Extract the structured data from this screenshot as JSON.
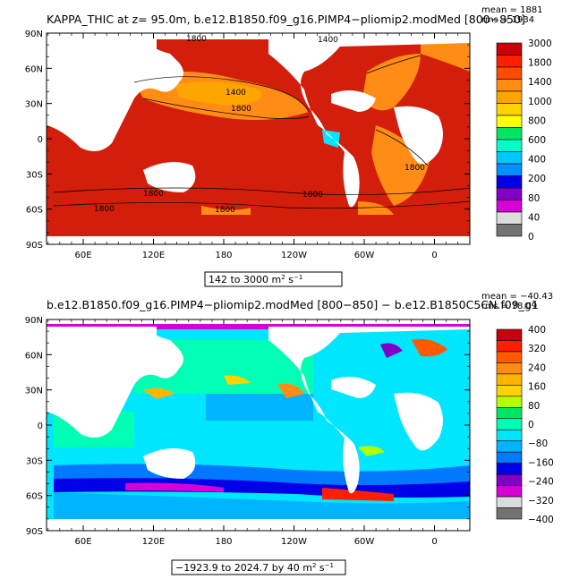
{
  "panels": [
    {
      "title": "KAPPA_THIC at z=   95.0m, b.e12.B1850.f09_g16.PIMP4−pliomip2.modMed [800−850]",
      "stats_mean": "mean = 1881",
      "stats_rms": "rms = 1934",
      "range_label": "142 to 3000 m",
      "range_unit_sup": "2",
      "range_unit_tail": " s",
      "range_unit_sup2": "−1",
      "lat_labels": [
        "90N",
        "60N",
        "30N",
        "0",
        "30S",
        "60S",
        "90S"
      ],
      "lon_labels": [
        "60E",
        "120E",
        "180",
        "120W",
        "60W",
        "0"
      ],
      "contour_labels": [
        "1400",
        "1800",
        "1400",
        "1800",
        "1800",
        "1800",
        "1800",
        "1800",
        "1800",
        "1800",
        "1800"
      ],
      "colorbar_labels": [
        "3000",
        "1800",
        "1400",
        "1000",
        "800",
        "600",
        "400",
        "200",
        "80",
        "40",
        "0"
      ],
      "colorbar_colors": [
        "#c8000a",
        "#ff1e00",
        "#ff4a00",
        "#ff8c14",
        "#ffa500",
        "#ffd200",
        "#ffff00",
        "#00e664",
        "#00ffc8",
        "#00c8ff",
        "#0090ff",
        "#0000e6",
        "#8000c8",
        "#d700d7",
        "#dcdcdc",
        "#737373"
      ]
    },
    {
      "title": "b.e12.B1850.f09_g16.PIMP4−pliomip2.modMed [800−850] − b.e12.B1850C5CN.f09_g1",
      "stats_mean": "mean = −40.43",
      "stats_rms": "rms = 78.09",
      "range_label": "−1923.9 to 2024.7 by 40 m",
      "range_unit_sup": "2",
      "range_unit_tail": " s",
      "range_unit_sup2": "−1",
      "lat_labels": [
        "90N",
        "60N",
        "30N",
        "0",
        "30S",
        "60S",
        "90S"
      ],
      "lon_labels": [
        "60E",
        "120E",
        "180",
        "120W",
        "60W",
        "0"
      ],
      "colorbar_labels": [
        "400",
        "320",
        "240",
        "160",
        "80",
        "0",
        "−80",
        "−160",
        "−240",
        "−320",
        "−400"
      ],
      "colorbar_colors": [
        "#c8000a",
        "#ff1e00",
        "#ff5a00",
        "#ff8c14",
        "#ffb400",
        "#ffd200",
        "#b4ff00",
        "#00e664",
        "#00ffb4",
        "#00e6ff",
        "#00b4ff",
        "#0078ff",
        "#0000e6",
        "#8000c8",
        "#d700d7",
        "#dcdcdc",
        "#737373"
      ]
    }
  ]
}
